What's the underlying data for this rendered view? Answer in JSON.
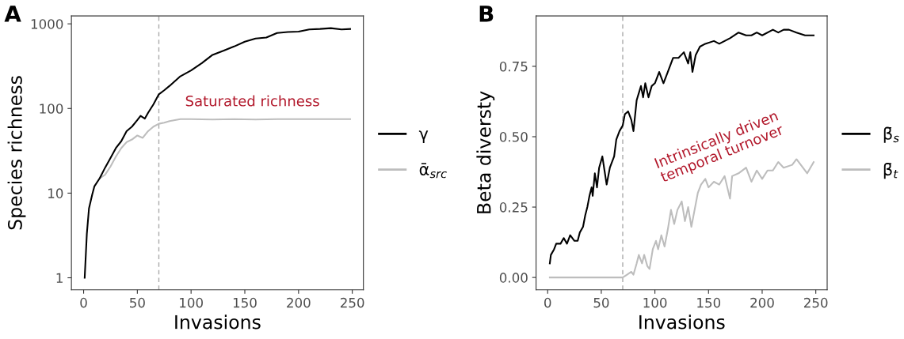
{
  "chart_data": [
    {
      "type": "line",
      "title": "A",
      "xlabel": "Invasions",
      "ylabel": "Species richness",
      "log": true,
      "grid": false,
      "legend": "right",
      "xlim": [
        -11.35,
        260.35
      ],
      "xticks": [
        0,
        50,
        100,
        150,
        200,
        250
      ],
      "ylim": [
        0.72,
        1240
      ],
      "yticks": [
        1,
        10,
        100,
        1000
      ],
      "ref_lines": [
        {
          "axis": "x",
          "value": 70,
          "color": "#aaaaaa",
          "line_style": "dashed"
        }
      ],
      "annotations": [
        "Saturated richness"
      ],
      "series": [
        {
          "name": "γ",
          "color": "#000000",
          "x": [
            1,
            3,
            5,
            8,
            10,
            15,
            20,
            25,
            30,
            35,
            40,
            45,
            50,
            53,
            57,
            60,
            65,
            70,
            75,
            80,
            90,
            100,
            110,
            120,
            130,
            140,
            150,
            160,
            170,
            180,
            190,
            200,
            210,
            220,
            230,
            240,
            248
          ],
          "values": [
            1,
            3.3,
            6.6,
            9.6,
            12,
            15,
            20,
            26,
            34,
            41,
            54,
            61,
            73,
            82,
            76,
            89,
            112,
            147,
            164,
            185,
            240,
            282,
            343,
            430,
            480,
            540,
            615,
            670,
            690,
            780,
            800,
            810,
            860,
            870,
            890,
            860,
            870
          ]
        },
        {
          "name": "ᾱ$_{src}$",
          "color": "#bdbdbd",
          "x": [
            15,
            20,
            25,
            30,
            35,
            40,
            45,
            50,
            55,
            60,
            65,
            70,
            75,
            80,
            90,
            100,
            120,
            140,
            160,
            180,
            200,
            220,
            248
          ],
          "values": [
            15,
            16.5,
            20.6,
            27,
            34,
            40,
            43,
            48,
            45,
            54,
            61,
            66,
            68,
            71,
            75,
            75,
            74,
            75,
            74,
            75,
            75,
            75,
            75
          ]
        }
      ]
    },
    {
      "type": "line",
      "title": "B",
      "xlabel": "Invasions",
      "ylabel": "Beta diversty",
      "grid": false,
      "legend": "right",
      "xlim": [
        -10.8,
        260.6
      ],
      "xticks": [
        0,
        50,
        100,
        150,
        200,
        250
      ],
      "ylim": [
        -0.044,
        0.929
      ],
      "yticks": [
        {
          "value": 0,
          "label": "0.00"
        },
        {
          "value": 0.25,
          "label": "0.25"
        },
        {
          "value": 0.5,
          "label": "0.50"
        },
        {
          "value": 0.75,
          "label": "0.75"
        }
      ],
      "ref_lines": [
        {
          "axis": "x",
          "value": 70,
          "color": "#aaaaaa",
          "line_style": "dashed"
        }
      ],
      "annotations": [
        "Intrinsically driven\ntemporal turnover"
      ],
      "series": [
        {
          "name": "β̄$_{s}$",
          "color": "#000000",
          "x": [
            2,
            3,
            6,
            8,
            12,
            15,
            18,
            21,
            25,
            28,
            30,
            33,
            35,
            37,
            39,
            41,
            42,
            44,
            46,
            48,
            51,
            53,
            55,
            58,
            62,
            64,
            67,
            70,
            72,
            75,
            78,
            80,
            83,
            87,
            89,
            91,
            94,
            97,
            100,
            104,
            108,
            112,
            117,
            122,
            127,
            131,
            133,
            135,
            138,
            142,
            147,
            155,
            160,
            165,
            170,
            178,
            185,
            190,
            195,
            200,
            210,
            215,
            220,
            225,
            232,
            240,
            248
          ],
          "values": [
            0.05,
            0.08,
            0.1,
            0.12,
            0.12,
            0.14,
            0.12,
            0.15,
            0.13,
            0.13,
            0.16,
            0.18,
            0.22,
            0.25,
            0.29,
            0.32,
            0.29,
            0.37,
            0.32,
            0.39,
            0.43,
            0.38,
            0.33,
            0.39,
            0.43,
            0.49,
            0.52,
            0.54,
            0.58,
            0.59,
            0.56,
            0.52,
            0.63,
            0.68,
            0.64,
            0.69,
            0.64,
            0.68,
            0.69,
            0.73,
            0.69,
            0.73,
            0.78,
            0.78,
            0.8,
            0.76,
            0.8,
            0.73,
            0.79,
            0.82,
            0.83,
            0.84,
            0.83,
            0.84,
            0.85,
            0.87,
            0.86,
            0.86,
            0.87,
            0.86,
            0.88,
            0.87,
            0.88,
            0.88,
            0.87,
            0.86,
            0.86
          ]
        },
        {
          "name": "β̄$_{t}$",
          "color": "#bdbdbd",
          "x": [
            2,
            70,
            74,
            78,
            80,
            83,
            85,
            88,
            90,
            93,
            95,
            98,
            101,
            103,
            106,
            109,
            112,
            115,
            118,
            121,
            125,
            128,
            131,
            134,
            137,
            140,
            143,
            147,
            150,
            155,
            160,
            165,
            170,
            172,
            178,
            185,
            190,
            195,
            200,
            205,
            210,
            215,
            220,
            228,
            232,
            238,
            242,
            248
          ],
          "values": [
            0,
            0,
            0.01,
            0.02,
            0.01,
            0.05,
            0.08,
            0.05,
            0.08,
            0.04,
            0.03,
            0.1,
            0.13,
            0.1,
            0.15,
            0.11,
            0.17,
            0.24,
            0.19,
            0.24,
            0.27,
            0.2,
            0.25,
            0.18,
            0.24,
            0.3,
            0.33,
            0.35,
            0.32,
            0.34,
            0.33,
            0.36,
            0.28,
            0.36,
            0.37,
            0.39,
            0.34,
            0.38,
            0.35,
            0.38,
            0.38,
            0.41,
            0.39,
            0.4,
            0.42,
            0.39,
            0.37,
            0.41
          ]
        }
      ]
    }
  ]
}
